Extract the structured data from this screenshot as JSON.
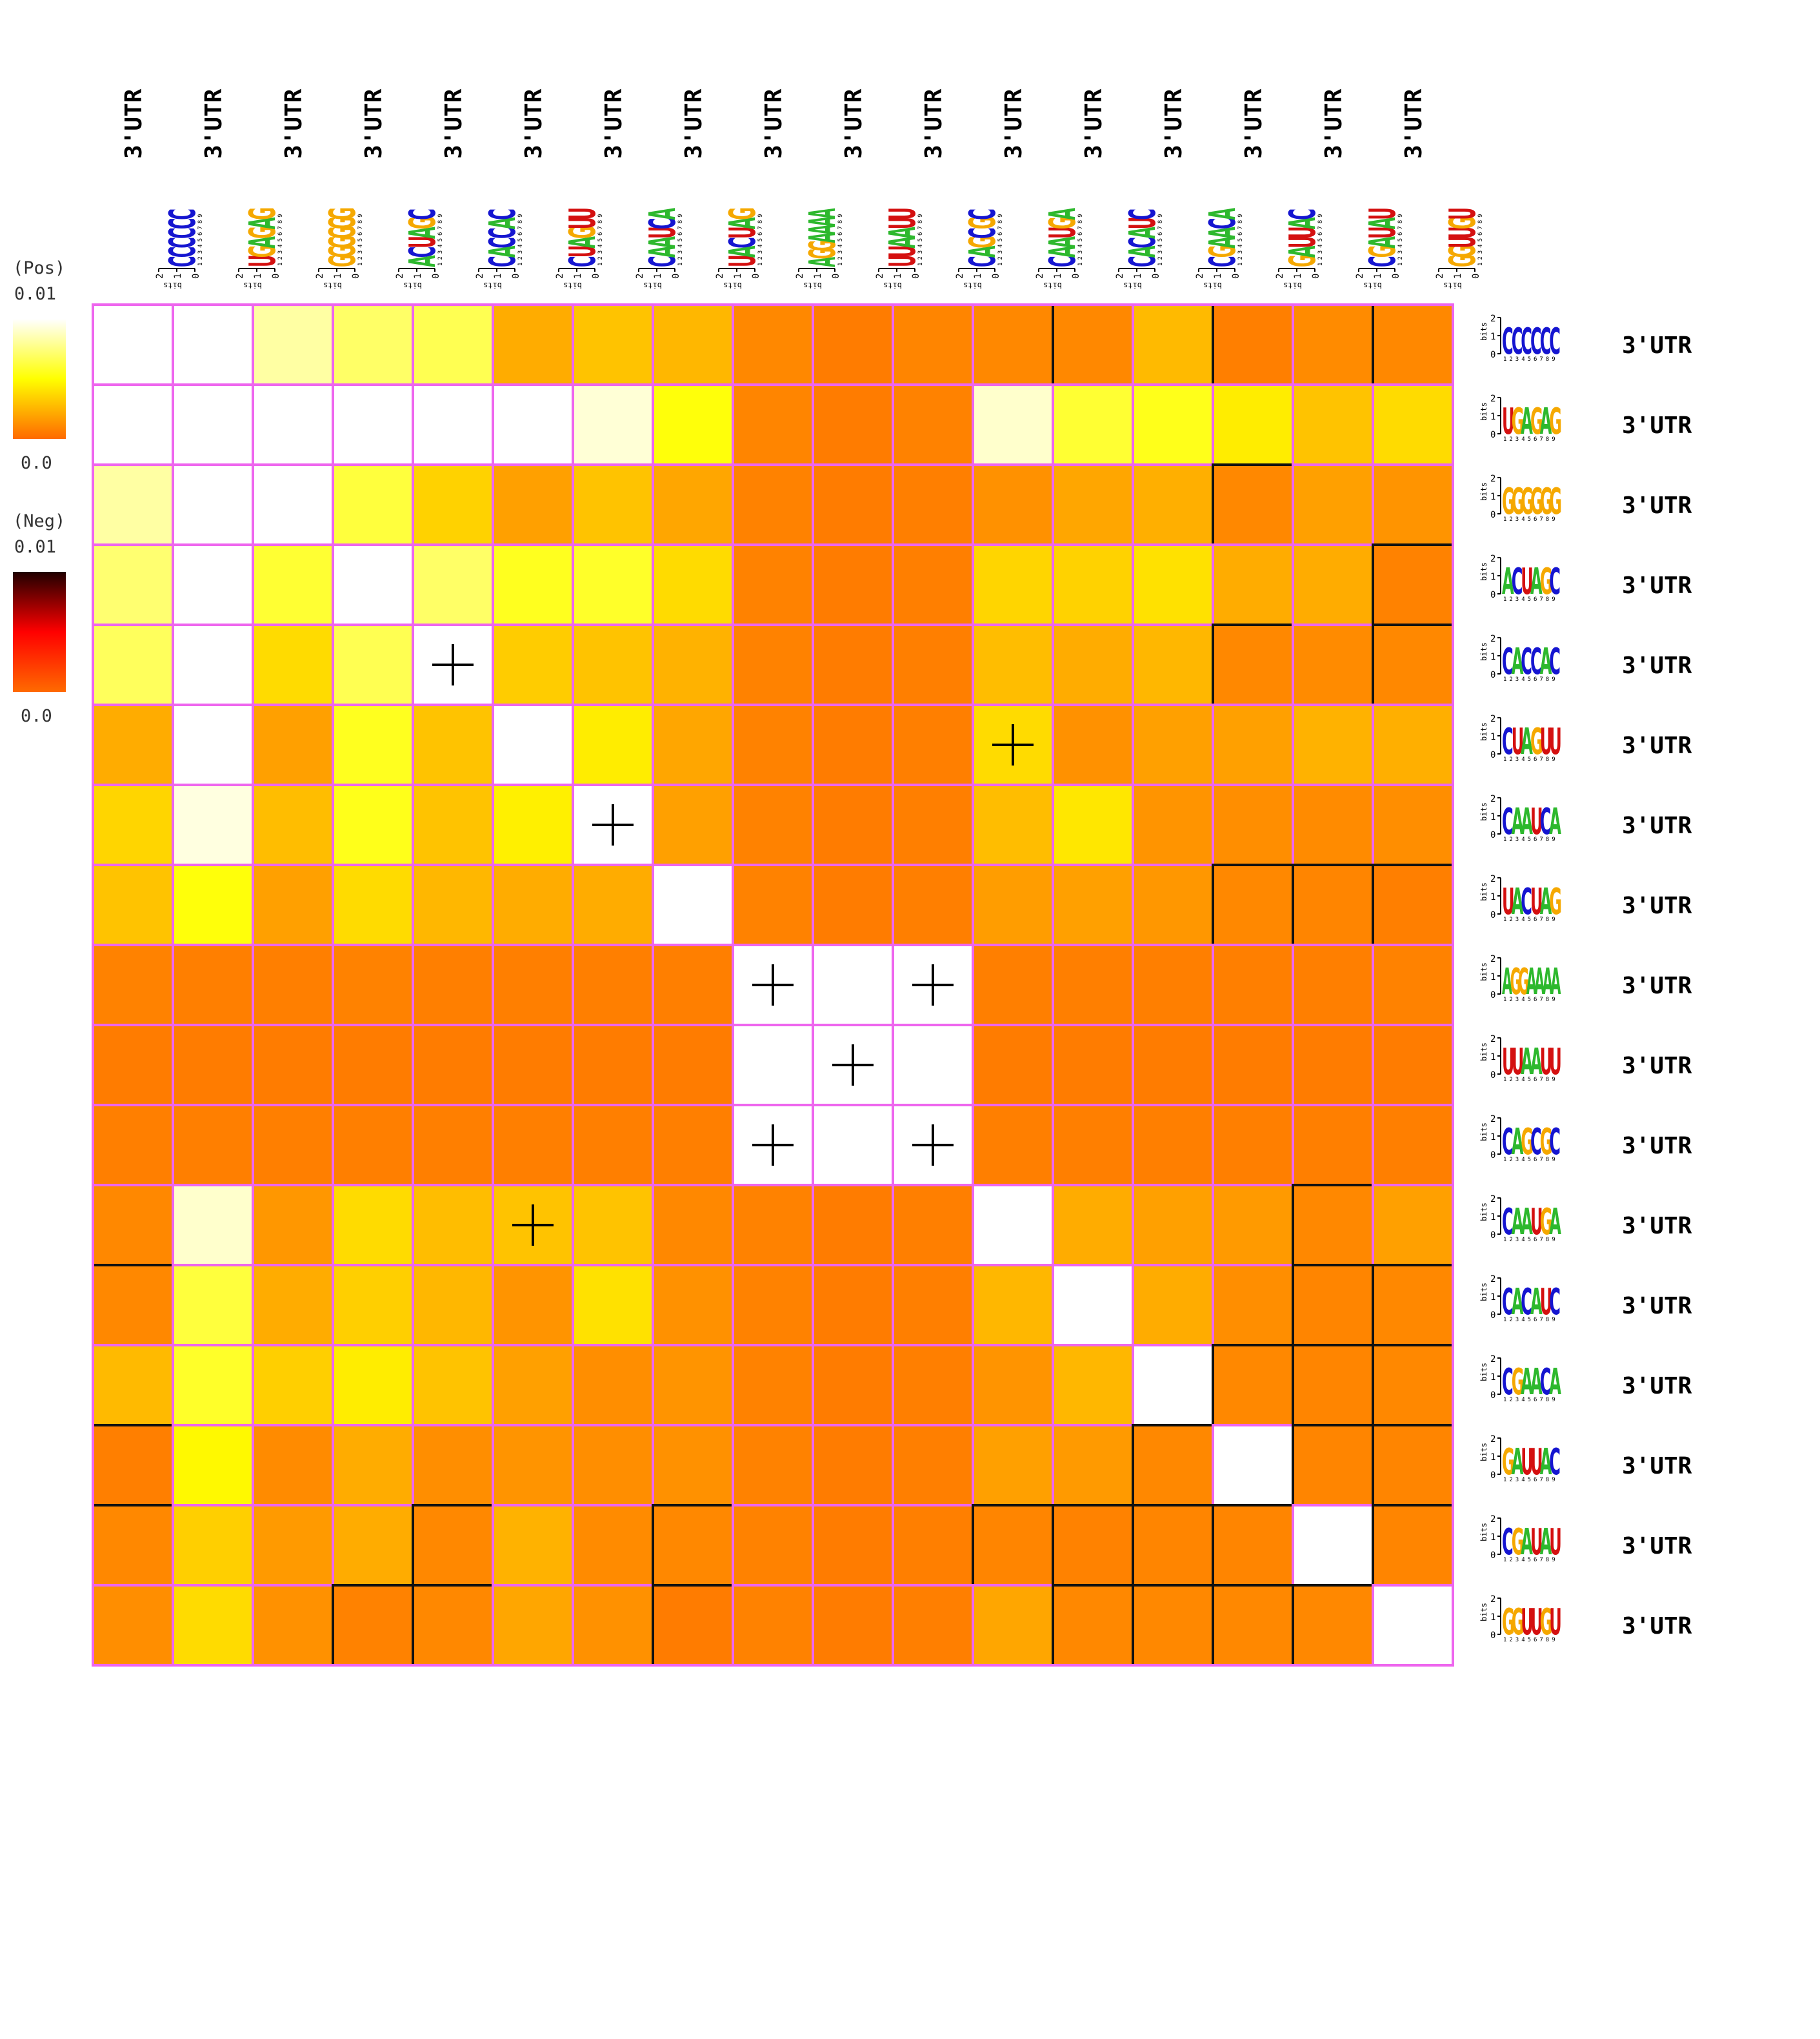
{
  "chart_data": {
    "type": "heatmap",
    "title": "",
    "column_labels": [
      "3'UTR",
      "3'UTR",
      "3'UTR",
      "3'UTR",
      "3'UTR",
      "3'UTR",
      "3'UTR",
      "3'UTR",
      "3'UTR",
      "3'UTR",
      "3'UTR",
      "3'UTR",
      "3'UTR",
      "3'UTR",
      "3'UTR",
      "3'UTR",
      "3'UTR"
    ],
    "row_labels": [
      "3'UTR",
      "3'UTR",
      "3'UTR",
      "3'UTR",
      "3'UTR",
      "3'UTR",
      "3'UTR",
      "3'UTR",
      "3'UTR",
      "3'UTR",
      "3'UTR",
      "3'UTR",
      "3'UTR",
      "3'UTR",
      "3'UTR",
      "3'UTR",
      "3'UTR"
    ],
    "motifs": [
      "CCCCCC",
      "UGAGAG",
      "GGGGGG",
      "ACUAGC",
      "CACCAC",
      "CUAGUU",
      "CAAUCA",
      "UACUAG",
      "AGGAAAA",
      "UUAAUU",
      "CAGCGC",
      "CAAUGA",
      "CACAUC",
      "CGAACA",
      "GAUUAC",
      "CGAUAU",
      "GGUUGU"
    ],
    "logo_axis": {
      "ylabel": "bits",
      "ticks": [
        "0",
        "1",
        "2"
      ],
      "positions": [
        "1",
        "2",
        "3",
        "4",
        "5",
        "6",
        "7",
        "8",
        "9"
      ]
    },
    "colorbars": [
      {
        "label": "(Pos)",
        "max_label": "0.01",
        "min_label": "0.0",
        "colors": [
          "#ff6a00",
          "#ffff00",
          "#ffffff"
        ]
      },
      {
        "label": "(Neg)",
        "max_label": "0.01",
        "min_label": "0.0",
        "colors": [
          "#ff6a00",
          "#ff0000",
          "#200000"
        ]
      }
    ],
    "values": [
      [
        1.0,
        1.0,
        0.82,
        0.7,
        0.66,
        0.22,
        0.3,
        0.26,
        0.1,
        0.06,
        0.09,
        0.1,
        0.1,
        0.27,
        0.07,
        0.11,
        0.1
      ],
      [
        1.0,
        1.0,
        1.0,
        1.0,
        1.0,
        1.0,
        0.92,
        0.52,
        0.09,
        0.06,
        0.08,
        0.9,
        0.6,
        0.55,
        0.44,
        0.3,
        0.38
      ],
      [
        0.82,
        1.0,
        1.0,
        0.62,
        0.35,
        0.18,
        0.3,
        0.2,
        0.08,
        0.06,
        0.07,
        0.13,
        0.2,
        0.23,
        0.1,
        0.18,
        0.14
      ],
      [
        0.72,
        1.0,
        0.6,
        1.0,
        0.7,
        0.56,
        0.58,
        0.38,
        0.08,
        0.06,
        0.07,
        0.36,
        0.35,
        0.4,
        0.22,
        0.22,
        0.08
      ],
      [
        0.68,
        1.0,
        0.38,
        0.66,
        1.0,
        0.33,
        0.3,
        0.24,
        0.08,
        0.06,
        0.07,
        0.28,
        0.22,
        0.26,
        0.1,
        0.11,
        0.1
      ],
      [
        0.22,
        1.0,
        0.18,
        0.56,
        0.3,
        1.0,
        0.44,
        0.2,
        0.08,
        0.06,
        0.07,
        0.38,
        0.13,
        0.18,
        0.18,
        0.24,
        0.23
      ],
      [
        0.36,
        0.94,
        0.28,
        0.55,
        0.3,
        0.45,
        1.0,
        0.18,
        0.08,
        0.06,
        0.07,
        0.28,
        0.42,
        0.14,
        0.12,
        0.11,
        0.12
      ],
      [
        0.3,
        0.52,
        0.18,
        0.38,
        0.26,
        0.22,
        0.22,
        1.0,
        0.08,
        0.06,
        0.07,
        0.17,
        0.18,
        0.15,
        0.1,
        0.09,
        0.07
      ],
      [
        0.08,
        0.07,
        0.07,
        0.08,
        0.07,
        0.07,
        0.07,
        0.07,
        1.0,
        1.0,
        1.0,
        0.07,
        0.07,
        0.07,
        0.07,
        0.07,
        0.08
      ],
      [
        0.06,
        0.06,
        0.06,
        0.06,
        0.06,
        0.06,
        0.06,
        0.06,
        1.0,
        1.0,
        1.0,
        0.06,
        0.06,
        0.06,
        0.06,
        0.06,
        0.06
      ],
      [
        0.07,
        0.07,
        0.07,
        0.07,
        0.07,
        0.07,
        0.07,
        0.07,
        1.0,
        1.0,
        1.0,
        0.07,
        0.07,
        0.07,
        0.07,
        0.07,
        0.07
      ],
      [
        0.1,
        0.9,
        0.15,
        0.38,
        0.28,
        0.3,
        0.3,
        0.1,
        0.08,
        0.06,
        0.07,
        1.0,
        0.22,
        0.18,
        0.16,
        0.1,
        0.18
      ],
      [
        0.1,
        0.62,
        0.22,
        0.34,
        0.26,
        0.14,
        0.4,
        0.13,
        0.08,
        0.06,
        0.07,
        0.26,
        1.0,
        0.22,
        0.12,
        0.09,
        0.1
      ],
      [
        0.27,
        0.58,
        0.34,
        0.44,
        0.3,
        0.18,
        0.12,
        0.14,
        0.08,
        0.06,
        0.07,
        0.14,
        0.26,
        1.0,
        0.1,
        0.09,
        0.1
      ],
      [
        0.07,
        0.48,
        0.11,
        0.22,
        0.12,
        0.14,
        0.12,
        0.13,
        0.08,
        0.06,
        0.07,
        0.18,
        0.16,
        0.1,
        1.0,
        0.09,
        0.09
      ],
      [
        0.1,
        0.34,
        0.16,
        0.22,
        0.1,
        0.24,
        0.11,
        0.1,
        0.08,
        0.06,
        0.07,
        0.09,
        0.08,
        0.09,
        0.09,
        1.0,
        0.09
      ],
      [
        0.12,
        0.38,
        0.13,
        0.08,
        0.1,
        0.2,
        0.13,
        0.06,
        0.08,
        0.06,
        0.07,
        0.2,
        0.1,
        0.1,
        0.1,
        0.1,
        1.0
      ]
    ],
    "plus_marks": [
      [
        4,
        4
      ],
      [
        5,
        11
      ],
      [
        6,
        6
      ],
      [
        8,
        8
      ],
      [
        8,
        10
      ],
      [
        9,
        9
      ],
      [
        10,
        8
      ],
      [
        10,
        10
      ],
      [
        11,
        5
      ]
    ]
  }
}
